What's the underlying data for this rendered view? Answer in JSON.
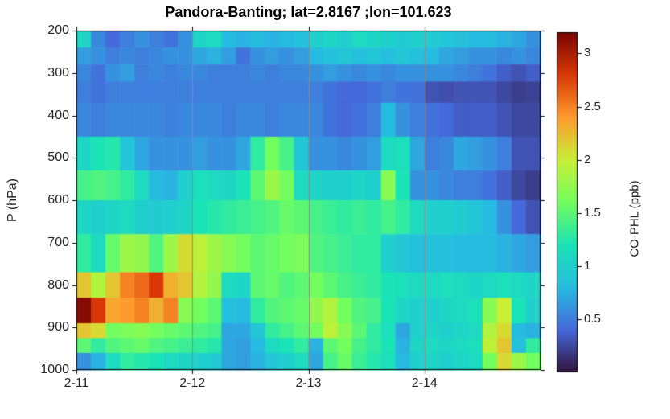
{
  "chart_data": {
    "type": "heatmap",
    "title": "Pandora-Banting; lat=2.8167 ;lon=101.623",
    "xlabel": "",
    "ylabel": "P (hPa)",
    "ylim": [
      200,
      1000
    ],
    "y_axis_reversed": true,
    "y_ticks": [
      200,
      300,
      400,
      500,
      600,
      700,
      800,
      900,
      1000
    ],
    "x_tick_labels": [
      "2-11",
      "2-12",
      "2-13",
      "2-14"
    ],
    "x_days": 4,
    "columns_per_day": 8,
    "time_step_hours": 3,
    "grid": {
      "vertical_gridlines": true,
      "gridline_color": "#8a8a8a",
      "horizontal_gridlines": false
    },
    "pressure_boundaries_hPa": [
      200,
      240,
      280,
      320,
      370,
      450,
      530,
      600,
      680,
      770,
      830,
      890,
      925,
      960,
      1000
    ],
    "values_rows_top_to_bottom": [
      [
        1.05,
        0.55,
        0.4,
        0.5,
        0.6,
        0.5,
        0.45,
        0.6,
        1.05,
        1.1,
        0.8,
        0.75,
        0.8,
        0.75,
        0.8,
        0.85,
        1.0,
        1.05,
        1.0,
        1.1,
        1.05,
        1.0,
        0.95,
        1.0,
        0.95,
        0.9,
        0.85,
        0.8,
        0.8,
        0.75,
        0.7,
        0.6
      ],
      [
        0.65,
        0.6,
        0.5,
        0.55,
        0.5,
        0.55,
        0.6,
        0.6,
        0.7,
        0.75,
        0.65,
        0.45,
        0.6,
        0.65,
        0.6,
        0.65,
        0.8,
        0.85,
        0.9,
        0.85,
        0.9,
        0.85,
        0.9,
        0.85,
        0.8,
        0.7,
        0.65,
        0.6,
        0.6,
        0.55,
        0.6,
        0.55
      ],
      [
        0.55,
        0.45,
        0.6,
        0.65,
        0.5,
        0.55,
        0.5,
        0.55,
        0.55,
        0.5,
        0.5,
        0.5,
        0.55,
        0.5,
        0.55,
        0.55,
        0.6,
        0.65,
        0.6,
        0.55,
        0.6,
        0.55,
        0.6,
        0.6,
        0.6,
        0.6,
        0.55,
        0.5,
        0.45,
        0.35,
        0.3,
        0.35
      ],
      [
        0.5,
        0.45,
        0.5,
        0.5,
        0.5,
        0.5,
        0.5,
        0.5,
        0.5,
        0.5,
        0.5,
        0.5,
        0.5,
        0.5,
        0.5,
        0.5,
        0.5,
        0.45,
        0.4,
        0.4,
        0.45,
        0.5,
        0.45,
        0.45,
        0.3,
        0.28,
        0.3,
        0.3,
        0.3,
        0.25,
        0.2,
        0.22
      ],
      [
        0.55,
        0.5,
        0.55,
        0.55,
        0.55,
        0.55,
        0.5,
        0.55,
        0.55,
        0.55,
        0.5,
        0.55,
        0.55,
        0.5,
        0.55,
        0.55,
        0.55,
        0.45,
        0.4,
        0.45,
        0.5,
        0.8,
        0.6,
        0.5,
        0.45,
        0.4,
        0.35,
        0.35,
        0.35,
        0.3,
        0.25,
        0.25
      ],
      [
        1.05,
        1.2,
        1.25,
        0.9,
        0.7,
        0.6,
        0.6,
        0.6,
        0.65,
        0.6,
        0.6,
        0.7,
        1.3,
        1.6,
        1.4,
        0.9,
        0.6,
        0.6,
        0.55,
        0.6,
        0.65,
        1.1,
        1.15,
        0.7,
        0.5,
        0.55,
        0.7,
        0.65,
        0.6,
        0.5,
        0.3,
        0.3
      ],
      [
        1.4,
        1.45,
        1.4,
        1.3,
        1.1,
        0.8,
        0.75,
        1.0,
        1.15,
        1.1,
        1.05,
        1.2,
        1.5,
        1.8,
        1.6,
        1.1,
        1.05,
        1.0,
        1.0,
        1.05,
        1.0,
        1.7,
        1.2,
        0.6,
        0.6,
        0.55,
        0.5,
        0.5,
        0.45,
        0.35,
        0.25,
        0.2
      ],
      [
        1.05,
        1.0,
        1.05,
        1.1,
        1.0,
        0.95,
        1.0,
        1.05,
        1.2,
        1.25,
        1.3,
        1.35,
        1.4,
        1.45,
        1.55,
        1.5,
        1.4,
        1.35,
        1.3,
        1.35,
        1.3,
        1.4,
        1.3,
        1.1,
        1.0,
        1.0,
        0.95,
        0.9,
        0.8,
        0.6,
        0.4,
        0.3
      ],
      [
        1.3,
        1.1,
        1.55,
        1.8,
        1.75,
        1.45,
        1.8,
        2.1,
        1.95,
        1.8,
        1.7,
        1.6,
        1.5,
        1.55,
        1.6,
        1.65,
        1.45,
        1.4,
        1.35,
        1.3,
        1.3,
        1.0,
        0.9,
        0.85,
        0.85,
        0.85,
        0.8,
        0.8,
        0.8,
        0.75,
        0.7,
        0.65
      ],
      [
        2.2,
        1.9,
        2.2,
        2.5,
        2.6,
        2.8,
        2.3,
        2.2,
        1.9,
        1.75,
        1.1,
        1.05,
        1.5,
        1.55,
        1.45,
        1.5,
        1.6,
        1.5,
        1.4,
        1.35,
        1.3,
        1.2,
        1.15,
        1.1,
        1.1,
        1.15,
        1.1,
        1.05,
        1.1,
        1.15,
        1.1,
        1.05
      ],
      [
        3.15,
        2.8,
        2.35,
        2.4,
        2.5,
        2.3,
        2.5,
        1.7,
        1.6,
        1.5,
        0.85,
        0.8,
        1.3,
        1.45,
        1.5,
        1.55,
        1.75,
        1.9,
        1.6,
        1.45,
        1.4,
        1.2,
        1.05,
        1.0,
        1.0,
        1.05,
        1.1,
        1.15,
        1.7,
        2.0,
        1.2,
        1.0
      ],
      [
        2.2,
        2.1,
        1.6,
        1.65,
        1.7,
        1.6,
        1.55,
        1.5,
        1.45,
        1.4,
        0.7,
        0.7,
        0.9,
        1.3,
        1.4,
        1.5,
        1.6,
        1.95,
        1.7,
        1.5,
        1.3,
        1.15,
        0.7,
        1.0,
        1.05,
        1.0,
        1.05,
        1.1,
        1.9,
        2.1,
        0.8,
        0.75
      ],
      [
        1.5,
        1.3,
        1.45,
        1.5,
        1.55,
        1.45,
        1.4,
        1.35,
        1.3,
        1.25,
        0.7,
        0.65,
        0.8,
        1.1,
        1.2,
        1.3,
        0.75,
        1.5,
        1.6,
        1.4,
        1.3,
        1.2,
        0.75,
        1.05,
        1.1,
        1.05,
        1.1,
        1.15,
        1.95,
        2.2,
        0.85,
        1.3
      ],
      [
        0.6,
        0.75,
        1.1,
        1.3,
        1.25,
        1.2,
        1.1,
        1.05,
        1.0,
        0.95,
        0.7,
        0.65,
        0.75,
        0.9,
        1.0,
        1.1,
        0.7,
        1.4,
        1.55,
        1.35,
        1.25,
        1.15,
        0.8,
        1.0,
        1.05,
        1.0,
        1.05,
        1.1,
        1.6,
        2.1,
        1.8,
        1.6
      ]
    ],
    "colorbar": {
      "label": "CO-PHL (ppb)",
      "min": 0,
      "max": 3.2,
      "ticks": [
        0.5,
        1,
        1.5,
        2,
        2.5,
        3
      ],
      "colormap": "turbo",
      "gradient_stops": [
        [
          0.0,
          "#30123b"
        ],
        [
          0.125,
          "#4669db"
        ],
        [
          0.25,
          "#26bce1"
        ],
        [
          0.375,
          "#1ae4b6"
        ],
        [
          0.5,
          "#72fe5e"
        ],
        [
          0.625,
          "#c8ef34"
        ],
        [
          0.75,
          "#fe9b2d"
        ],
        [
          0.875,
          "#d93806"
        ],
        [
          1.0,
          "#7a0403"
        ]
      ]
    },
    "axis_color": "#000000"
  }
}
